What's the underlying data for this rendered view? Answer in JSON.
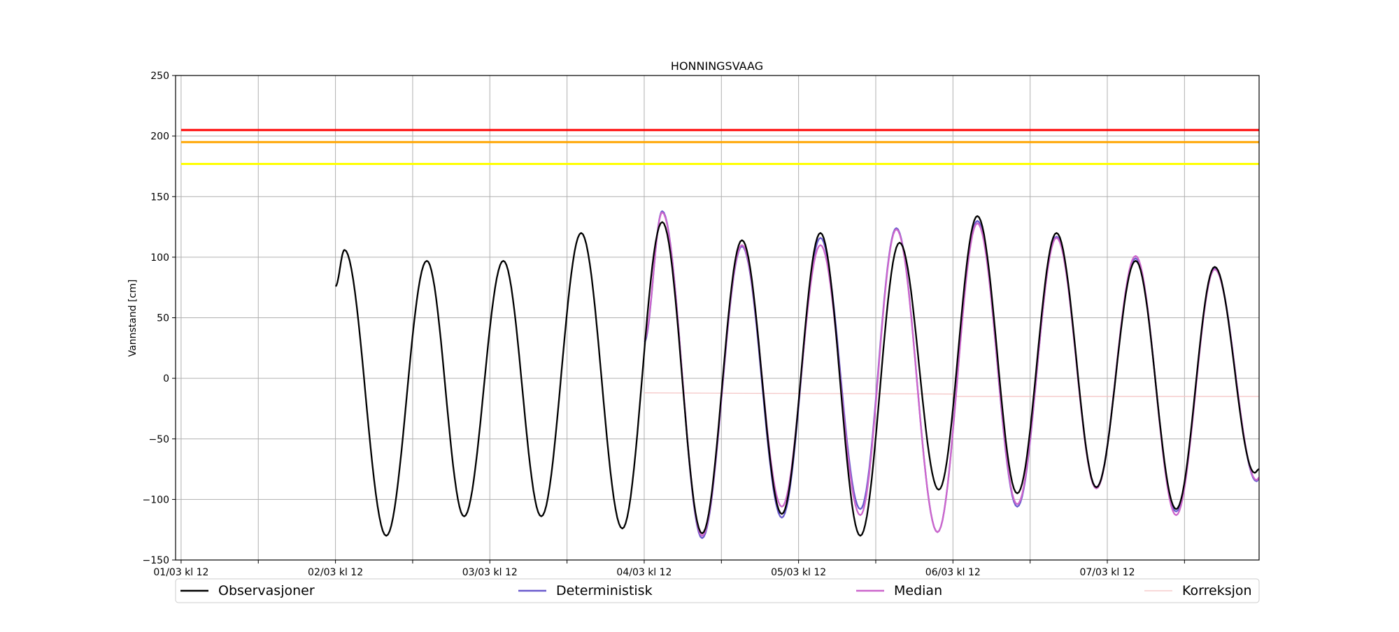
{
  "chart_data": {
    "type": "line",
    "title": "HONNINGSVAAG",
    "xlabel": "",
    "ylabel": "Vannstand [cm]",
    "ylim": [
      -150,
      250
    ],
    "xlim_hours_from_first_tick": [
      -0.86,
      167.6
    ],
    "x_unit": "hours since 01/03 kl 12",
    "xticks": [
      {
        "hour": 0,
        "label": "01/03 kl 12"
      },
      {
        "hour": 24,
        "label": "02/03 kl 12"
      },
      {
        "hour": 48,
        "label": "03/03 kl 12"
      },
      {
        "hour": 72,
        "label": "04/03 kl 12"
      },
      {
        "hour": 96,
        "label": "05/03 kl 12"
      },
      {
        "hour": 120,
        "label": "06/03 kl 12"
      },
      {
        "hour": 144,
        "label": "07/03 kl 12"
      }
    ],
    "minor_xticks_hours": [
      12,
      36,
      60,
      84,
      108,
      132,
      156
    ],
    "yticks": [
      -150,
      -100,
      -50,
      0,
      50,
      100,
      150,
      200,
      250
    ],
    "grid": true,
    "thresholds": [
      {
        "value": 205,
        "color": "#ff0000"
      },
      {
        "value": 195,
        "color": "#ffa500"
      },
      {
        "value": 177,
        "color": "#ffff00"
      }
    ],
    "series": [
      {
        "name": "Observasjoner",
        "color": "#000000",
        "points": [
          [
            24,
            76
          ],
          [
            25.4,
            106
          ],
          [
            31.9,
            -130
          ],
          [
            38.2,
            97
          ],
          [
            44,
            -114
          ],
          [
            50.1,
            97
          ],
          [
            56,
            -114
          ],
          [
            62.2,
            120
          ],
          [
            68.6,
            -124
          ],
          [
            74.8,
            129
          ],
          [
            81,
            -128
          ],
          [
            87.2,
            114
          ],
          [
            93.4,
            -112
          ],
          [
            99.4,
            120
          ],
          [
            105.6,
            -130
          ],
          [
            111.7,
            112
          ],
          [
            117.8,
            -92
          ],
          [
            123.8,
            134
          ],
          [
            130,
            -95
          ],
          [
            136.1,
            120
          ],
          [
            142.3,
            -90
          ],
          [
            148.4,
            97
          ],
          [
            154.7,
            -108
          ],
          [
            160.7,
            92
          ],
          [
            166.9,
            -78
          ],
          [
            167.6,
            -75
          ]
        ]
      },
      {
        "name": "Deterministisk",
        "color": "#6a5acd",
        "points": [
          [
            72,
            30
          ],
          [
            74.8,
            138
          ],
          [
            81,
            -132
          ],
          [
            87.2,
            109
          ],
          [
            93.4,
            -115
          ],
          [
            99.4,
            116
          ],
          [
            105.6,
            -108
          ],
          [
            111.2,
            124
          ],
          [
            117.6,
            -127
          ],
          [
            123.8,
            130
          ],
          [
            130,
            -106
          ],
          [
            136.1,
            117
          ],
          [
            142.3,
            -90
          ],
          [
            148.4,
            99
          ],
          [
            154.7,
            -110
          ],
          [
            160.7,
            91
          ],
          [
            167.2,
            -85
          ],
          [
            167.6,
            -83
          ]
        ]
      },
      {
        "name": "Median",
        "color": "#cc66cc",
        "points": [
          [
            72,
            32
          ],
          [
            74.8,
            137
          ],
          [
            81,
            -130
          ],
          [
            87.2,
            110
          ],
          [
            93.4,
            -106
          ],
          [
            99.4,
            110
          ],
          [
            105.6,
            -113
          ],
          [
            111.2,
            123
          ],
          [
            117.6,
            -127
          ],
          [
            123.8,
            128
          ],
          [
            130,
            -104
          ],
          [
            136.1,
            116
          ],
          [
            142.3,
            -91
          ],
          [
            148.4,
            101
          ],
          [
            154.7,
            -113
          ],
          [
            160.7,
            90
          ],
          [
            167.2,
            -84
          ],
          [
            167.6,
            -82
          ]
        ]
      },
      {
        "name": "Korreksjon",
        "color": "#f4c2c2",
        "points": [
          [
            72,
            -12
          ],
          [
            96,
            -12.5
          ],
          [
            120,
            -13
          ],
          [
            120,
            -15
          ],
          [
            144,
            -15
          ],
          [
            167.6,
            -15
          ]
        ]
      }
    ],
    "legend_position": "bottom"
  }
}
